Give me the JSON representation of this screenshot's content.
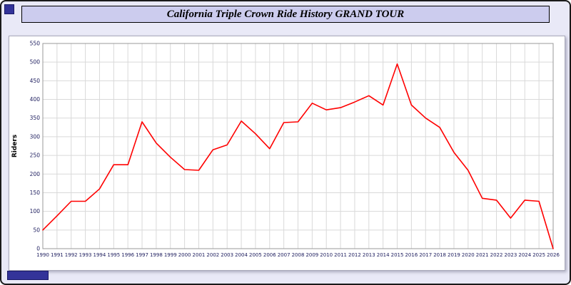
{
  "window": {
    "title": "California Triple Crown Ride History GRAND TOUR"
  },
  "chart_data": {
    "type": "line",
    "title": "California Triple Crown Ride History GRAND TOUR",
    "xlabel": "",
    "ylabel": "Riders",
    "ylim": [
      0,
      550
    ],
    "ytick_step": 50,
    "grid": true,
    "legend": "none",
    "line_color": "#ff0000",
    "x": [
      1990,
      1991,
      1992,
      1993,
      1994,
      1995,
      1996,
      1997,
      1998,
      1999,
      2000,
      2001,
      2002,
      2003,
      2004,
      2005,
      2006,
      2007,
      2008,
      2009,
      2010,
      2011,
      2012,
      2013,
      2014,
      2015,
      2016,
      2017,
      2018,
      2019,
      2020,
      2021,
      2022,
      2023,
      2024,
      2025,
      2026
    ],
    "series": [
      {
        "name": "Riders",
        "values": [
          50,
          88,
          127,
          127,
          160,
          225,
          225,
          340,
          283,
          245,
          212,
          210,
          265,
          278,
          342,
          308,
          268,
          338,
          340,
          390,
          372,
          378,
          393,
          410,
          385,
          495,
          385,
          350,
          325,
          258,
          210,
          135,
          130,
          82,
          130,
          127,
          0
        ]
      }
    ]
  },
  "colors": {
    "accent_navy": "#333399",
    "titlebar_bg": "#ccccee",
    "page_bg": "#e9e9f7",
    "series_red": "#ff0000"
  }
}
